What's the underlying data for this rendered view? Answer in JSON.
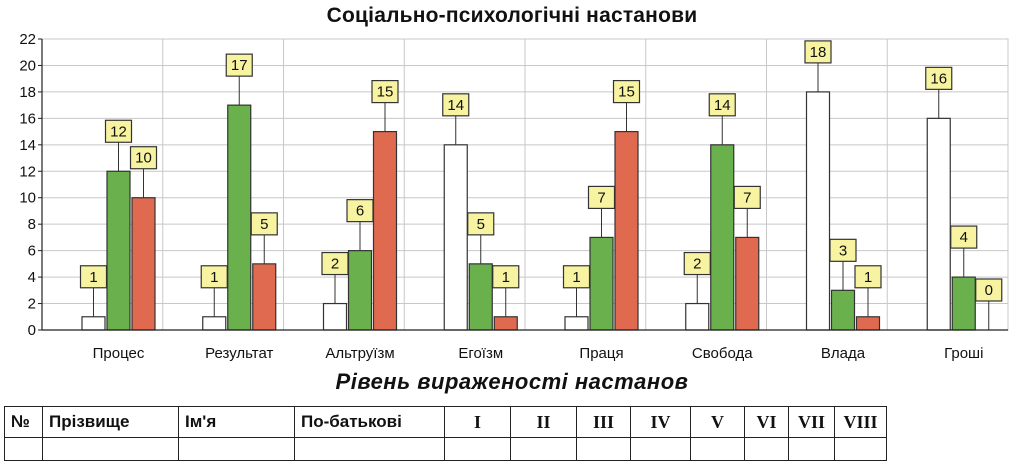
{
  "chart_data": {
    "type": "bar",
    "title": "Соціально-психологічні настанови",
    "xlabel": "",
    "ylabel": "",
    "ylim": [
      0,
      22
    ],
    "yticks": [
      0,
      2,
      4,
      6,
      8,
      10,
      12,
      14,
      16,
      18,
      20,
      22
    ],
    "grid": true,
    "legend": "none",
    "categories": [
      "Процес",
      "Результат",
      "Альтруїзм",
      "Егоїзм",
      "Праця",
      "Свобода",
      "Влада",
      "Гроші"
    ],
    "series": [
      {
        "color": "#ffffff",
        "values": [
          1,
          1,
          2,
          14,
          1,
          2,
          18,
          16
        ]
      },
      {
        "color": "#6ab04c",
        "values": [
          12,
          17,
          6,
          5,
          7,
          14,
          3,
          4
        ]
      },
      {
        "color": "#e06a50",
        "values": [
          10,
          5,
          15,
          1,
          15,
          7,
          1,
          0
        ]
      }
    ]
  },
  "section_title": "Рівень вираженості  настанов",
  "table": {
    "headers": [
      "№",
      "Прізвище",
      "Ім'я",
      "По-батькові",
      "I",
      "II",
      "III",
      "IV",
      "V",
      "VI",
      "VII",
      "VIII"
    ]
  },
  "colors": {
    "label_box": "#f7f3a0",
    "grid": "#c8c8c8",
    "plot_border": "#9a9a9a"
  }
}
